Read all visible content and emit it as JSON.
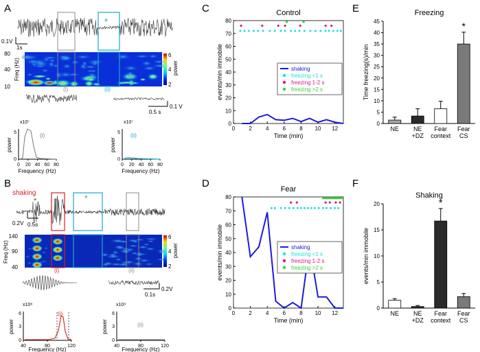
{
  "panel_letters": {
    "A": "A",
    "B": "B",
    "C": "C",
    "D": "D",
    "E": "E",
    "F": "F"
  },
  "panelA": {
    "star": "*",
    "scale_v": "0.1V",
    "scale_t": "1s",
    "freq_label": "Freq (Hz)",
    "freq_ticks": [
      "80",
      "40",
      "10"
    ],
    "colorbar_ticks": [
      "6",
      "4",
      "2"
    ],
    "colorbar_label": "power",
    "roman_i": "(i)",
    "roman_ii": "(ii)",
    "zoom_scale_t": "0.5 s",
    "zoom_scale_v": "0.1 V",
    "spec_i_exp": "x10⁷",
    "spec_ii_exp": "x10⁷",
    "spec_i_yticks": [
      "5",
      "0"
    ],
    "spec_ii_yticks": [
      "5",
      "0"
    ],
    "spec_xticks": [
      "0",
      "20",
      "40",
      "60",
      "80"
    ],
    "power_label": "power",
    "freq_xlabel": "Frequency (Hz)"
  },
  "panelB": {
    "shaking": "shaking",
    "star": "*",
    "scale_v": "0.2V",
    "scale_t": "0.5s",
    "freq_label": "Freq (Hz)",
    "freq_ticks": [
      "140",
      "90",
      "40"
    ],
    "colorbar_ticks": [
      "6",
      "4",
      "2"
    ],
    "colorbar_label": "power",
    "roman_i": "(i)",
    "roman_ii": "(ii)",
    "zoom_scale_t": "0.1s",
    "zoom_scale_v": "0.2V",
    "spec_i_exp": "x10⁸",
    "spec_ii_exp": "x10⁸",
    "spec_i_yticks": [
      "6",
      "3",
      "0"
    ],
    "spec_ii_yticks": [
      "6",
      "3",
      "0"
    ],
    "spec_xticks": [
      "40",
      "80",
      "120"
    ],
    "power_label": "power",
    "freq_xlabel": "Frequency (Hz)"
  },
  "legend": {
    "shaking": "shaking",
    "freezing_lt1": "freezing <1 s",
    "freezing_1_2": "freezing 1-2 s",
    "freezing_gt2": "freezing >2 s"
  },
  "colors": {
    "shaking": "#1a1adb",
    "freezing_lt1": "#19e0e0",
    "freezing_1_2": "#d81b7a",
    "freezing_gt2": "#2bd82b",
    "red": "#d92020",
    "cyan": "#1aa8c8"
  },
  "chart_data": [
    {
      "id": "C",
      "type": "line",
      "title": "Control",
      "xlabel": "Time (min)",
      "ylabel": "events/min immobile",
      "xlim": [
        0,
        13
      ],
      "ylim": [
        0,
        80
      ],
      "xticks": [
        0,
        2,
        4,
        6,
        8,
        10,
        12
      ],
      "yticks": [
        0,
        10,
        20,
        30,
        40,
        50,
        60,
        70,
        80
      ],
      "series": [
        {
          "name": "shaking",
          "x": [
            1,
            2,
            3,
            4,
            5,
            6,
            7,
            8,
            9,
            10,
            11,
            12,
            13
          ],
          "values": [
            0,
            0,
            5,
            7,
            3,
            2.5,
            4,
            1.5,
            4,
            1,
            3,
            1,
            0
          ]
        }
      ],
      "events": {
        "freezing_lt1": [
          0.8,
          1.3,
          1.8,
          2.4,
          2.9,
          3.5,
          4.3,
          4.9,
          5.6,
          6.1,
          6.8,
          7.3,
          7.8,
          8.4,
          9.1,
          9.7,
          10.3,
          10.9,
          11.3,
          11.8,
          12.3,
          12.7
        ],
        "freezing_1_2": [
          0.9,
          3.4,
          5.3,
          6.1,
          7.9,
          10.9,
          11.6
        ],
        "freezing_gt2": [
          6.3,
          8.3
        ]
      }
    },
    {
      "id": "D",
      "type": "line",
      "title": "Fear",
      "xlabel": "Time (min)",
      "ylabel": "events/min immobile",
      "xlim": [
        0,
        13
      ],
      "ylim": [
        0,
        80
      ],
      "xticks": [
        0,
        2,
        4,
        6,
        8,
        10,
        12
      ],
      "yticks": [
        0,
        10,
        20,
        30,
        40,
        50,
        60,
        70,
        80
      ],
      "series": [
        {
          "name": "shaking",
          "x": [
            1,
            2,
            3,
            4,
            5,
            6,
            7,
            8,
            9,
            10,
            11,
            12,
            13
          ],
          "values": [
            80,
            37,
            44,
            69,
            5,
            0,
            4,
            0,
            45,
            8,
            8,
            0,
            0
          ]
        }
      ],
      "events": {
        "freezing_lt1": [
          4.5,
          4.9,
          5.6,
          6.1,
          6.6,
          7.1,
          7.6,
          8.0,
          8.4,
          8.8,
          9.2,
          9.6,
          10.1,
          10.6,
          11.0,
          11.5,
          12.0,
          12.4
        ],
        "freezing_1_2": [
          6.8,
          7.5,
          10.9,
          11.4,
          12.1,
          12.6
        ],
        "freezing_gt2_span": [
          10.5,
          12.9
        ]
      }
    },
    {
      "id": "E",
      "type": "bar",
      "title": "Freezing",
      "ylabel": "Time freezing(s)/min",
      "categories": [
        "NE",
        "NE\n+DZ",
        "Fear\ncontext",
        "Fear\nCS"
      ],
      "values": [
        1.5,
        3.3,
        6.5,
        35
      ],
      "errors": [
        1.3,
        3.2,
        3.3,
        5.2
      ],
      "fills": [
        "#a6a6a6",
        "#2a2a2a",
        "#ffffff",
        "#7a7a7a"
      ],
      "significance": [
        null,
        null,
        null,
        "*"
      ],
      "ylim": [
        0,
        45
      ],
      "yticks": [
        0,
        5,
        10,
        15,
        20,
        25,
        30,
        35,
        40,
        45
      ]
    },
    {
      "id": "F",
      "type": "bar",
      "title": "Shaking",
      "ylabel": "events/min immobile",
      "categories": [
        "NE",
        "NE\n+DZ",
        "Fear\ncontext",
        "Fear\nCS"
      ],
      "values": [
        1.5,
        0.3,
        16.7,
        2.2
      ],
      "errors": [
        0.3,
        0.2,
        2.4,
        0.6
      ],
      "fills": [
        "#ffffff",
        "#2a2a2a",
        "#2a2a2a",
        "#7a7a7a"
      ],
      "significance": [
        null,
        null,
        "*",
        null
      ],
      "ylim": [
        0,
        20
      ],
      "yticks": [
        0,
        5,
        10,
        15,
        20
      ]
    }
  ]
}
